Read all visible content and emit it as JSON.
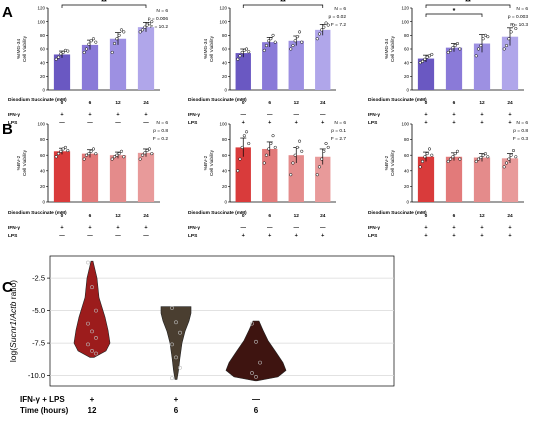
{
  "panels": {
    "A": {
      "letter": "A"
    },
    "B": {
      "letter": "B"
    },
    "C": {
      "letter": "C"
    }
  },
  "colors": {
    "panelA_bars": [
      "#6a58c2",
      "#8a7ad8",
      "#9d90e2",
      "#b0a6ea"
    ],
    "panelB_bars": [
      "#d93b3b",
      "#e27a7a",
      "#e48b8b",
      "#e89a9a"
    ],
    "violins": [
      "#9c1c1c",
      "#4a3e30",
      "#3e1410"
    ]
  },
  "chart_data": [
    {
      "id": "A1",
      "type": "bar",
      "ylabel_lines": [
        "%IMG-34",
        "Cell Viability"
      ],
      "ylim": [
        0,
        120
      ],
      "yticks": [
        "0",
        "20",
        "40",
        "60",
        "80",
        "100",
        "120"
      ],
      "categories": [
        "0",
        "6",
        "12",
        "24"
      ],
      "values": [
        52,
        66,
        75,
        92
      ],
      "errors": [
        5,
        7,
        9,
        7
      ],
      "points": [
        [
          45,
          48,
          53,
          55,
          58,
          57
        ],
        [
          55,
          60,
          67,
          72,
          75,
          70
        ],
        [
          55,
          68,
          75,
          80,
          88,
          85
        ],
        [
          85,
          88,
          92,
          95,
          97,
          100
        ]
      ],
      "rows": [
        {
          "label": "Disodium Succinate (mM)",
          "values": [
            "0",
            "6",
            "12",
            "24"
          ]
        },
        {
          "label": "IFN-γ",
          "values": [
            "+",
            "+",
            "+",
            "+"
          ]
        },
        {
          "label": "LPS",
          "values": [
            "—",
            "—",
            "—",
            "—"
          ]
        }
      ],
      "stats": [
        "N = 6",
        "p = 0.006",
        "F = 10.2"
      ],
      "significance": [
        {
          "from": 0,
          "to": 3,
          "label": "**"
        }
      ]
    },
    {
      "id": "A2",
      "type": "bar",
      "ylabel_lines": [
        "%IMG-34",
        "Cell Viability"
      ],
      "ylim": [
        0,
        120
      ],
      "yticks": [
        "0",
        "20",
        "40",
        "60",
        "80",
        "100",
        "120"
      ],
      "categories": [
        "0",
        "6",
        "12",
        "24"
      ],
      "values": [
        54,
        70,
        72,
        88
      ],
      "errors": [
        6,
        7,
        7,
        8
      ],
      "points": [
        [
          45,
          50,
          55,
          58,
          60,
          56
        ],
        [
          58,
          65,
          72,
          75,
          80,
          70
        ],
        [
          60,
          65,
          72,
          78,
          85,
          70
        ],
        [
          75,
          82,
          88,
          92,
          98,
          95
        ]
      ],
      "rows": [
        {
          "label": "Disodium Succinate (mM)",
          "values": [
            "0",
            "6",
            "12",
            "24"
          ]
        },
        {
          "label": "IFN-γ",
          "values": [
            "—",
            "—",
            "—",
            "—"
          ]
        },
        {
          "label": "LPS",
          "values": [
            "+",
            "+",
            "+",
            "+"
          ]
        }
      ],
      "stats": [
        "N = 6",
        "p = 0.02",
        "F = 7.2"
      ],
      "significance": [
        {
          "from": 0,
          "to": 3,
          "label": "**"
        }
      ]
    },
    {
      "id": "A3",
      "type": "bar",
      "ylabel_lines": [
        "%IMG-34",
        "Cell Viability"
      ],
      "ylim": [
        0,
        120
      ],
      "yticks": [
        "0",
        "20",
        "40",
        "60",
        "80",
        "100",
        "120"
      ],
      "categories": [
        "0",
        "6",
        "12",
        "24"
      ],
      "values": [
        46,
        62,
        68,
        78
      ],
      "errors": [
        5,
        6,
        13,
        13
      ],
      "points": [
        [
          40,
          42,
          45,
          48,
          50,
          52
        ],
        [
          55,
          58,
          62,
          65,
          68,
          60
        ],
        [
          50,
          60,
          65,
          75,
          80,
          78
        ],
        [
          60,
          65,
          75,
          85,
          95,
          90
        ]
      ],
      "rows": [
        {
          "label": "Disodium Succinate (mM)",
          "values": [
            "0",
            "6",
            "12",
            "24"
          ]
        },
        {
          "label": "IFN-γ",
          "values": [
            "+",
            "+",
            "+",
            "+"
          ]
        },
        {
          "label": "LPS",
          "values": [
            "+",
            "+",
            "+",
            "+"
          ]
        }
      ],
      "stats": [
        "N = 6",
        "p = 0.003",
        "F = 10.3"
      ],
      "significance": [
        {
          "from": 0,
          "to": 3,
          "label": "**"
        },
        {
          "from": 0,
          "to": 2,
          "label": "*"
        }
      ]
    },
    {
      "id": "B1",
      "type": "bar",
      "ylabel_lines": [
        "%BV-2",
        "Cell Viability"
      ],
      "ylim": [
        0,
        100
      ],
      "yticks": [
        "0",
        "20",
        "40",
        "60",
        "80",
        "100"
      ],
      "categories": [
        "0",
        "6",
        "12",
        "24"
      ],
      "values": [
        65,
        62,
        60,
        63
      ],
      "errors": [
        4,
        5,
        4,
        5
      ],
      "points": [
        [
          58,
          62,
          65,
          68,
          70,
          66
        ],
        [
          55,
          60,
          62,
          65,
          68,
          62
        ],
        [
          55,
          58,
          60,
          62,
          65,
          58
        ],
        [
          55,
          60,
          63,
          66,
          68,
          62
        ]
      ],
      "rows": [
        {
          "label": "Disodium Succinate (mM)",
          "values": [
            "0",
            "6",
            "12",
            "24"
          ]
        },
        {
          "label": "IFN-γ",
          "values": [
            "+",
            "+",
            "+",
            "+"
          ]
        },
        {
          "label": "LPS",
          "values": [
            "—",
            "—",
            "—",
            "—"
          ]
        }
      ],
      "stats": [
        "N = 6",
        "p = 0.8",
        "F = 0.2"
      ],
      "significance": []
    },
    {
      "id": "B2",
      "type": "bar",
      "ylabel_lines": [
        "%BV-2",
        "Cell Viability"
      ],
      "ylim": [
        0,
        100
      ],
      "yticks": [
        "0",
        "20",
        "40",
        "60",
        "80",
        "100"
      ],
      "categories": [
        "0",
        "6",
        "12",
        "24"
      ],
      "values": [
        70,
        68,
        60,
        58
      ],
      "errors": [
        12,
        9,
        10,
        10
      ],
      "points": [
        [
          40,
          55,
          70,
          85,
          90,
          75
        ],
        [
          50,
          60,
          68,
          75,
          85,
          70
        ],
        [
          35,
          50,
          60,
          70,
          78,
          65
        ],
        [
          35,
          45,
          55,
          65,
          75,
          70
        ]
      ],
      "rows": [
        {
          "label": "Disodium Succinate (mM)",
          "values": [
            "0",
            "6",
            "12",
            "24"
          ]
        },
        {
          "label": "IFN-γ",
          "values": [
            "—",
            "—",
            "—",
            "—"
          ]
        },
        {
          "label": "LPS",
          "values": [
            "+",
            "+",
            "+",
            "+"
          ]
        }
      ],
      "stats": [
        "N = 6",
        "p = 0.1",
        "F = 2.7"
      ],
      "significance": []
    },
    {
      "id": "B3",
      "type": "bar",
      "ylabel_lines": [
        "%BV-2",
        "Cell Viability"
      ],
      "ylim": [
        0,
        100
      ],
      "yticks": [
        "0",
        "20",
        "40",
        "60",
        "80",
        "100"
      ],
      "categories": [
        "0",
        "6",
        "12",
        "24"
      ],
      "values": [
        58,
        58,
        57,
        56
      ],
      "errors": [
        6,
        5,
        5,
        6
      ],
      "points": [
        [
          45,
          52,
          58,
          62,
          68,
          60
        ],
        [
          52,
          55,
          58,
          62,
          65,
          55
        ],
        [
          52,
          55,
          57,
          60,
          62,
          58
        ],
        [
          45,
          50,
          55,
          60,
          66,
          58
        ]
      ],
      "rows": [
        {
          "label": "Disodium Succinate (mM)",
          "values": [
            "0",
            "6",
            "12",
            "24"
          ]
        },
        {
          "label": "IFN-γ",
          "values": [
            "+",
            "+",
            "+",
            "+"
          ]
        },
        {
          "label": "LPS",
          "values": [
            "+",
            "+",
            "+",
            "+"
          ]
        }
      ],
      "stats": [
        "N = 6",
        "p = 0.8",
        "F = 0.3"
      ],
      "significance": []
    },
    {
      "id": "C",
      "type": "violin",
      "ylabel": "log(Sucnr1/Actb ratio)",
      "ylim": [
        -10.8,
        -0.8
      ],
      "yticks": [
        -2.5,
        -5.0,
        -7.5,
        -10.0
      ],
      "ytick_labels": [
        "-2.5",
        "-5.0",
        "-7.5",
        "-10.0"
      ],
      "groups": [
        {
          "ifn_lps": "+",
          "time": "12",
          "points": [
            -1.3,
            -3.2,
            -5.0,
            -6.0,
            -6.6,
            -7.1,
            -7.6,
            -8.1,
            -8.3
          ]
        },
        {
          "ifn_lps": "+",
          "time": "6",
          "points": [
            -4.8,
            -5.9,
            -6.7,
            -7.6,
            -8.6,
            -9.4,
            -10.2
          ]
        },
        {
          "ifn_lps": "—",
          "time": "6",
          "points": [
            -6.0,
            -7.4,
            -9.0,
            -9.8,
            -10.1
          ]
        }
      ],
      "row_labels": {
        "ifn_lps": "IFN-γ + LPS",
        "time": "Time (hours)"
      }
    }
  ]
}
